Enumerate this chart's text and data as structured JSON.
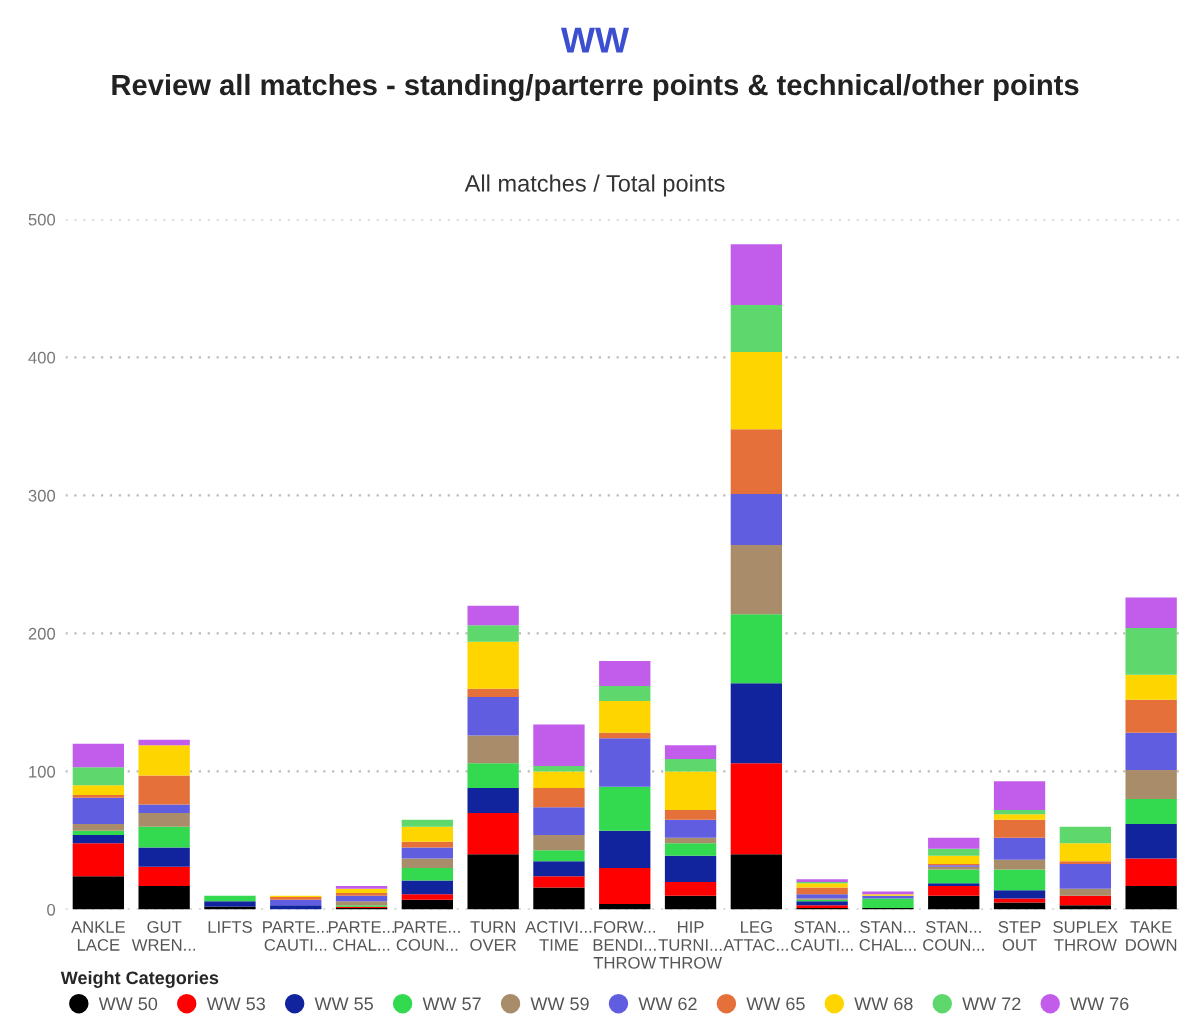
{
  "chart_data": {
    "type": "bar",
    "stacked": true,
    "title": "Review all matches - standing/parterre points & technical/other points",
    "subtitle": "All matches / Total points",
    "annotations": [
      "WW"
    ],
    "legend_title": "Weight Categories",
    "legend": "bottom",
    "grid": "y",
    "ylim": [
      0,
      500
    ],
    "yticks": [
      0,
      100,
      200,
      300,
      400,
      500
    ],
    "categories": [
      "ANKLE\nLACE",
      "GUT\nWREN...",
      "LIFTS",
      "PARTE...\nCAUTI...",
      "PARTE...\nCHAL...",
      "PARTE...\nCOUN...",
      "TURN\nOVER",
      "ACTIVI...\nTIME",
      "FORW...\nBENDI...\nTHROW",
      "HIP\nTURNI...\nTHROW",
      "LEG\nATTAC...",
      "STAN...\nCAUTI...",
      "STAN...\nCHAL...",
      "STAN...\nCOUN...",
      "STEP\nOUT",
      "SUPLEX\nTHROW",
      "TAKE\nDOWN"
    ],
    "series": [
      {
        "name": "WW 50",
        "color": "#000000",
        "values": [
          24,
          17,
          2,
          0,
          1,
          7,
          40,
          16,
          4,
          10,
          40,
          1,
          1,
          10,
          5,
          3,
          17
        ]
      },
      {
        "name": "WW 53",
        "color": "#ff0000",
        "values": [
          24,
          14,
          0,
          0,
          1,
          4,
          30,
          8,
          26,
          10,
          66,
          2,
          0,
          7,
          3,
          7,
          20
        ]
      },
      {
        "name": "WW 55",
        "color": "#12239e",
        "values": [
          6,
          14,
          4,
          3,
          0,
          10,
          18,
          11,
          27,
          19,
          58,
          3,
          0,
          2,
          6,
          0,
          25
        ]
      },
      {
        "name": "WW 57",
        "color": "#33d94f",
        "values": [
          3,
          15,
          4,
          0,
          1,
          9,
          18,
          8,
          32,
          9,
          50,
          1,
          7,
          10,
          15,
          0,
          18
        ]
      },
      {
        "name": "WW 59",
        "color": "#a98c6a",
        "values": [
          5,
          10,
          0,
          0,
          3,
          7,
          20,
          11,
          0,
          4,
          50,
          1,
          0,
          2,
          7,
          5,
          21
        ]
      },
      {
        "name": "WW 62",
        "color": "#605de0",
        "values": [
          19,
          6,
          0,
          4,
          4,
          8,
          28,
          20,
          35,
          13,
          37,
          3,
          2,
          1,
          16,
          18,
          27
        ]
      },
      {
        "name": "WW 65",
        "color": "#e5703a",
        "values": [
          2,
          21,
          0,
          2,
          2,
          4,
          6,
          14,
          4,
          7,
          47,
          5,
          0,
          1,
          13,
          2,
          24
        ]
      },
      {
        "name": "WW 68",
        "color": "#ffd500",
        "values": [
          7,
          22,
          0,
          1,
          3,
          11,
          34,
          12,
          23,
          28,
          56,
          3,
          1,
          6,
          4,
          13,
          18
        ]
      },
      {
        "name": "WW 72",
        "color": "#5ed86c",
        "values": [
          13,
          0,
          0,
          0,
          0,
          5,
          12,
          4,
          11,
          9,
          34,
          1,
          0,
          5,
          3,
          12,
          34
        ]
      },
      {
        "name": "WW 76",
        "color": "#c25ceb",
        "values": [
          17,
          4,
          0,
          0,
          2,
          0,
          14,
          30,
          18,
          10,
          44,
          2,
          2,
          8,
          21,
          0,
          22
        ]
      }
    ]
  }
}
